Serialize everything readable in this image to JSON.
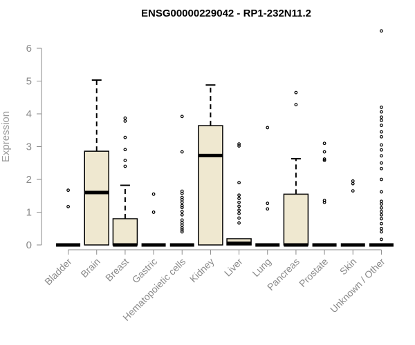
{
  "chart_data": {
    "type": "box",
    "title": "ENSG00000229042 - RP1-232N11.2",
    "xlabel": "",
    "ylabel": "Expression",
    "ylim": [
      0,
      6.6
    ],
    "yticks": [
      0,
      1,
      2,
      3,
      4,
      5,
      6
    ],
    "grid": false,
    "box_fill": "#efe8d0",
    "categories": [
      "Bladder",
      "Brain",
      "Breast",
      "Gastric",
      "Hematopoietic cells",
      "Kidney",
      "Liver",
      "Lung",
      "Pancreas",
      "Prostate",
      "Skin",
      "Unknown / Other"
    ],
    "boxes": [
      {
        "q1": 0,
        "median": 0,
        "q3": 0,
        "whisker_low": 0,
        "whisker_high": 0,
        "outliers": [
          1.17,
          1.67
        ]
      },
      {
        "q1": 0,
        "median": 1.6,
        "q3": 2.86,
        "whisker_low": 0,
        "whisker_high": 5.03,
        "outliers": []
      },
      {
        "q1": 0,
        "median": 0,
        "q3": 0.8,
        "whisker_low": 0,
        "whisker_high": 1.82,
        "outliers": [
          2.4,
          2.58,
          2.91,
          3.28,
          3.78,
          3.87
        ]
      },
      {
        "q1": 0,
        "median": 0,
        "q3": 0,
        "whisker_low": 0,
        "whisker_high": 0,
        "outliers": [
          1.0,
          1.55
        ]
      },
      {
        "q1": 0,
        "median": 0,
        "q3": 0,
        "whisker_low": 0,
        "whisker_high": 0,
        "outliers": [
          0.4,
          0.46,
          0.52,
          0.6,
          0.68,
          0.76,
          0.92,
          1.02,
          1.14,
          1.2,
          1.3,
          1.38,
          1.45,
          1.57,
          1.64,
          2.84,
          3.92
        ]
      },
      {
        "q1": 0,
        "median": 2.73,
        "q3": 3.64,
        "whisker_low": 0,
        "whisker_high": 4.88,
        "outliers": []
      },
      {
        "q1": 0,
        "median": 0.05,
        "q3": 0.19,
        "whisker_low": 0,
        "whisker_high": 0.19,
        "outliers": [
          0.67,
          0.82,
          0.96,
          1.06,
          1.18,
          1.3,
          1.42,
          1.52,
          1.9,
          3.02,
          3.08
        ]
      },
      {
        "q1": 0,
        "median": 0,
        "q3": 0,
        "whisker_low": 0,
        "whisker_high": 0,
        "outliers": [
          1.1,
          1.27,
          3.58
        ]
      },
      {
        "q1": 0,
        "median": 0,
        "q3": 1.55,
        "whisker_low": 0,
        "whisker_high": 2.63,
        "outliers": [
          4.28,
          4.65
        ]
      },
      {
        "q1": 0,
        "median": 0,
        "q3": 0,
        "whisker_low": 0,
        "whisker_high": 0,
        "outliers": [
          1.3,
          1.36,
          2.58,
          2.62,
          2.84,
          3.1
        ]
      },
      {
        "q1": 0,
        "median": 0,
        "q3": 0,
        "whisker_low": 0,
        "whisker_high": 0,
        "outliers": [
          1.65,
          1.87,
          1.95
        ]
      },
      {
        "q1": 0,
        "median": 0,
        "q3": 0,
        "whisker_low": 0,
        "whisker_high": 0,
        "outliers": [
          0.17,
          0.4,
          0.5,
          0.65,
          0.8,
          0.92,
          1.02,
          1.13,
          1.25,
          1.33,
          1.62,
          2.0,
          2.33,
          2.5,
          2.72,
          2.9,
          3.05,
          3.3,
          3.45,
          3.65,
          3.8,
          3.9,
          4.06,
          4.2,
          6.53
        ]
      }
    ]
  }
}
